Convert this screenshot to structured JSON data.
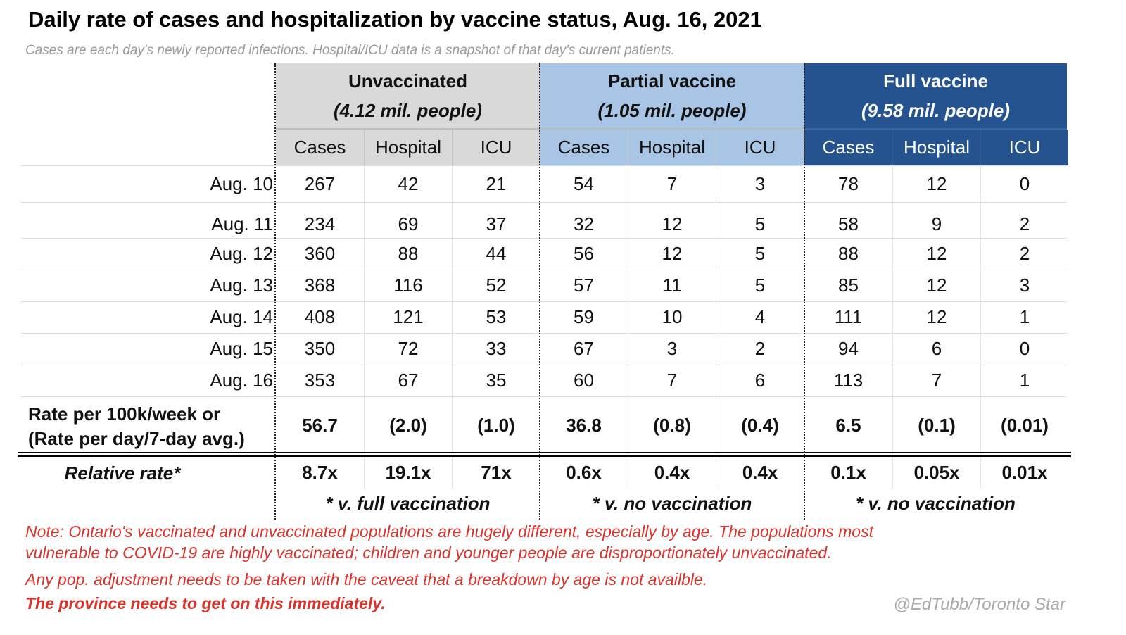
{
  "title": "Daily rate of cases and hospitalization by vaccine status, Aug. 16, 2021",
  "subtitle": "Cases are each day's newly reported infections. Hospital/ICU data is a snapshot of that day's current patients.",
  "colors": {
    "unvaccinated": "#d9d9d9",
    "partial": "#a9c5e6",
    "full": "#25538f",
    "note": "#d9332b"
  },
  "chart_data": {
    "type": "table",
    "groups": [
      {
        "name": "Unvaccinated",
        "population": "(4.12 mil. people)",
        "footnote": "* v. full vaccination"
      },
      {
        "name": "Partial vaccine",
        "population": "(1.05 mil. people)",
        "footnote": "* v. no vaccination"
      },
      {
        "name": "Full vaccine",
        "population": "(9.58 mil. people)",
        "footnote": "* v. no vaccination"
      }
    ],
    "subcolumns": [
      "Cases",
      "Hospital",
      "ICU"
    ],
    "rows": [
      {
        "label": "Aug. 10",
        "values": [
          "267",
          "42",
          "21",
          "54",
          "7",
          "3",
          "78",
          "12",
          "0"
        ]
      },
      {
        "label": "Aug. 11",
        "values": [
          "234",
          "69",
          "37",
          "32",
          "12",
          "5",
          "58",
          "9",
          "2"
        ]
      },
      {
        "label": "Aug. 12",
        "values": [
          "360",
          "88",
          "44",
          "56",
          "12",
          "5",
          "88",
          "12",
          "2"
        ]
      },
      {
        "label": "Aug. 13",
        "values": [
          "368",
          "116",
          "52",
          "57",
          "11",
          "5",
          "85",
          "12",
          "3"
        ]
      },
      {
        "label": "Aug. 14",
        "values": [
          "408",
          "121",
          "53",
          "59",
          "10",
          "4",
          "111",
          "12",
          "1"
        ]
      },
      {
        "label": "Aug. 15",
        "values": [
          "350",
          "72",
          "33",
          "67",
          "3",
          "2",
          "94",
          "6",
          "0"
        ]
      },
      {
        "label": "Aug. 16",
        "values": [
          "353",
          "67",
          "35",
          "60",
          "7",
          "6",
          "113",
          "7",
          "1"
        ]
      }
    ],
    "rate_row": {
      "label_line1": "Rate per 100k/week or",
      "label_line2": "(Rate per day/7-day avg.)",
      "values": [
        "56.7",
        "(2.0)",
        "(1.0)",
        "36.8",
        "(0.8)",
        "(0.4)",
        "6.5",
        "(0.1)",
        "(0.01)"
      ]
    },
    "relative_row": {
      "label": "Relative rate*",
      "values": [
        "8.7x",
        "19.1x",
        "71x",
        "0.6x",
        "0.4x",
        "0.4x",
        "0.1x",
        "0.05x",
        "0.01x"
      ]
    }
  },
  "notes": [
    "Note: Ontario's vaccinated and unvaccinated populations are hugely different, especially by age. The populations most",
    "vulnerable to COVID-19 are highly vaccinated; children and younger people are disproportionately unvaccinated.",
    "Any pop. adjustment needs to be taken with the caveat that a breakdown by age is not availble.",
    "The province needs to get on this immediately."
  ],
  "credit": "@EdTubb/Toronto Star"
}
